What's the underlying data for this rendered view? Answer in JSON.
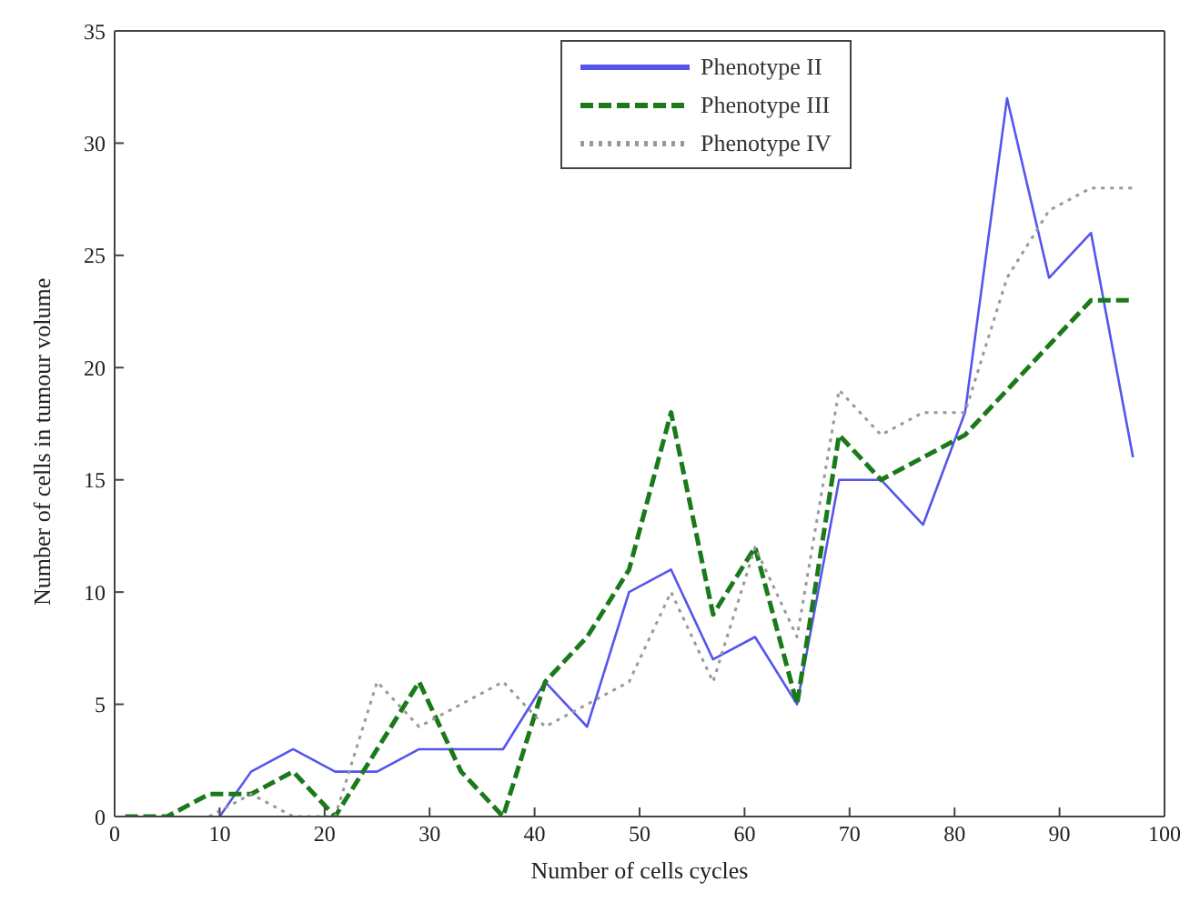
{
  "chart_data": {
    "type": "line",
    "xlabel": "Number of cells cycles",
    "ylabel": "Number of cells in tumour volume",
    "xlim": [
      0,
      100
    ],
    "xticks": [
      0,
      10,
      20,
      30,
      40,
      50,
      60,
      70,
      80,
      90,
      100
    ],
    "ylim": [
      0,
      35
    ],
    "yticks": [
      0,
      5,
      10,
      15,
      20,
      25,
      30,
      35
    ],
    "grid": false,
    "legend": "top right",
    "marker": "none",
    "series": [
      {
        "name": "Phenotype II",
        "color": "#5555ee",
        "line_style": "solid",
        "x": [
          10,
          13,
          17,
          21,
          25,
          29,
          33,
          37,
          41,
          45,
          49,
          53,
          57,
          61,
          65,
          69,
          73,
          77,
          81,
          85,
          89,
          93,
          97
        ],
        "values": [
          0,
          2,
          3,
          2,
          2,
          3,
          3,
          3,
          6,
          4,
          10,
          11,
          7,
          8,
          5,
          15,
          15,
          13,
          18,
          32,
          24,
          26,
          16
        ]
      },
      {
        "name": "Phenotype III",
        "color": "#1a7a1a",
        "line_style": "dashed",
        "x": [
          1,
          5,
          9,
          13,
          17,
          21,
          25,
          29,
          33,
          37,
          41,
          45,
          49,
          53,
          57,
          61,
          65,
          69,
          73,
          77,
          81,
          93,
          97
        ],
        "values": [
          0,
          0,
          1,
          1,
          2,
          0,
          3,
          6,
          2,
          0,
          6,
          8,
          11,
          18,
          9,
          12,
          5,
          17,
          15,
          16,
          17,
          23,
          23
        ]
      },
      {
        "name": "Phenotype IV",
        "color": "#999999",
        "line_style": "dotted",
        "x": [
          9,
          13,
          17,
          21,
          25,
          29,
          33,
          37,
          41,
          45,
          49,
          53,
          57,
          61,
          65,
          69,
          73,
          77,
          81,
          85,
          89,
          93,
          97
        ],
        "values": [
          0,
          1,
          0,
          0,
          6,
          4,
          5,
          6,
          4,
          5,
          6,
          10,
          6,
          12,
          8,
          19,
          17,
          18,
          18,
          24,
          27,
          28,
          28
        ]
      }
    ]
  }
}
